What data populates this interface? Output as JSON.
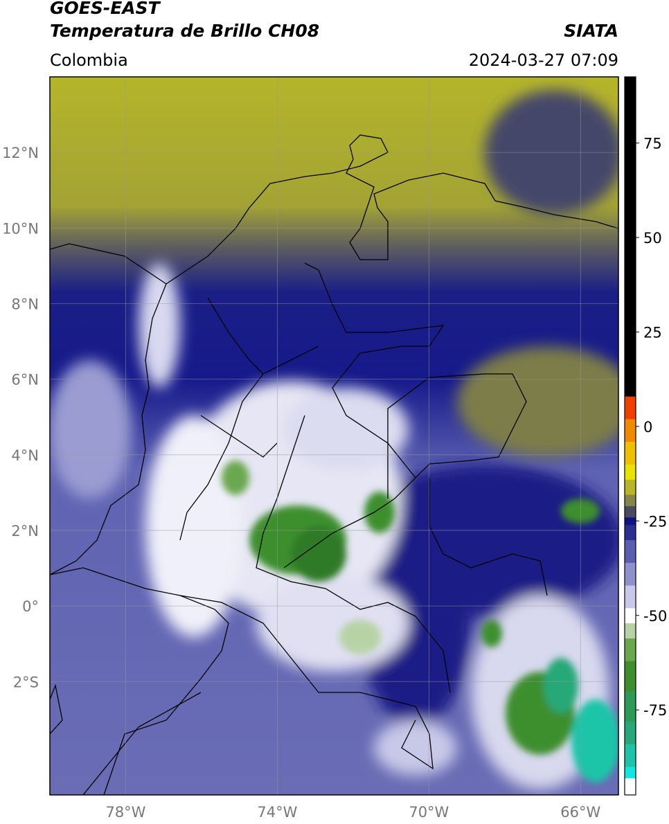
{
  "chart_data": {
    "type": "map",
    "title": "GOES-EAST",
    "subtitle": "Temperatura de Brillo CH08",
    "source": "SIATA",
    "region": "Colombia",
    "datetime": "2024-03-27 07:09",
    "xlim": [
      -80,
      -65
    ],
    "ylim": [
      -5,
      14
    ],
    "xticks": [
      {
        "value": -78,
        "label": "78°W"
      },
      {
        "value": -74,
        "label": "74°W"
      },
      {
        "value": -70,
        "label": "70°W"
      },
      {
        "value": -66,
        "label": "66°W"
      }
    ],
    "yticks": [
      {
        "value": 12,
        "label": "12°N"
      },
      {
        "value": 10,
        "label": "10°N"
      },
      {
        "value": 8,
        "label": "8°N"
      },
      {
        "value": 6,
        "label": "6°N"
      },
      {
        "value": 4,
        "label": "4°N"
      },
      {
        "value": 2,
        "label": "2°N"
      },
      {
        "value": 0,
        "label": "0°"
      },
      {
        "value": -2,
        "label": "2°S"
      }
    ],
    "grid": true,
    "colorbar_lim": [
      -97.5,
      92.5
    ],
    "colorbar_ticks": [
      75,
      50,
      25,
      0,
      -25,
      -50,
      -75
    ],
    "colormap": [
      {
        "value": -97.5,
        "color": "#ffffff"
      },
      {
        "value": -93,
        "color": "#12e6e0"
      },
      {
        "value": -90,
        "color": "#1fc4a8"
      },
      {
        "value": -84,
        "color": "#28a878"
      },
      {
        "value": -78,
        "color": "#2e9a55"
      },
      {
        "value": -70,
        "color": "#3d8f2e"
      },
      {
        "value": -62,
        "color": "#6aa84f"
      },
      {
        "value": -56,
        "color": "#b7d3a6"
      },
      {
        "value": -52,
        "color": "#ffffff"
      },
      {
        "value": -48,
        "color": "#c8c9e8"
      },
      {
        "value": -42,
        "color": "#8e91cc"
      },
      {
        "value": -36,
        "color": "#5a5eb0"
      },
      {
        "value": -30,
        "color": "#2a2f92"
      },
      {
        "value": -26,
        "color": "#0e1580"
      },
      {
        "value": -24,
        "color": "#4a4a60"
      },
      {
        "value": -21,
        "color": "#86864a"
      },
      {
        "value": -18,
        "color": "#b8b628"
      },
      {
        "value": -14,
        "color": "#e8e400"
      },
      {
        "value": -10,
        "color": "#f0c000"
      },
      {
        "value": -4,
        "color": "#f08a00"
      },
      {
        "value": 2,
        "color": "#f04000"
      },
      {
        "value": 8,
        "color": "#000000"
      }
    ]
  }
}
